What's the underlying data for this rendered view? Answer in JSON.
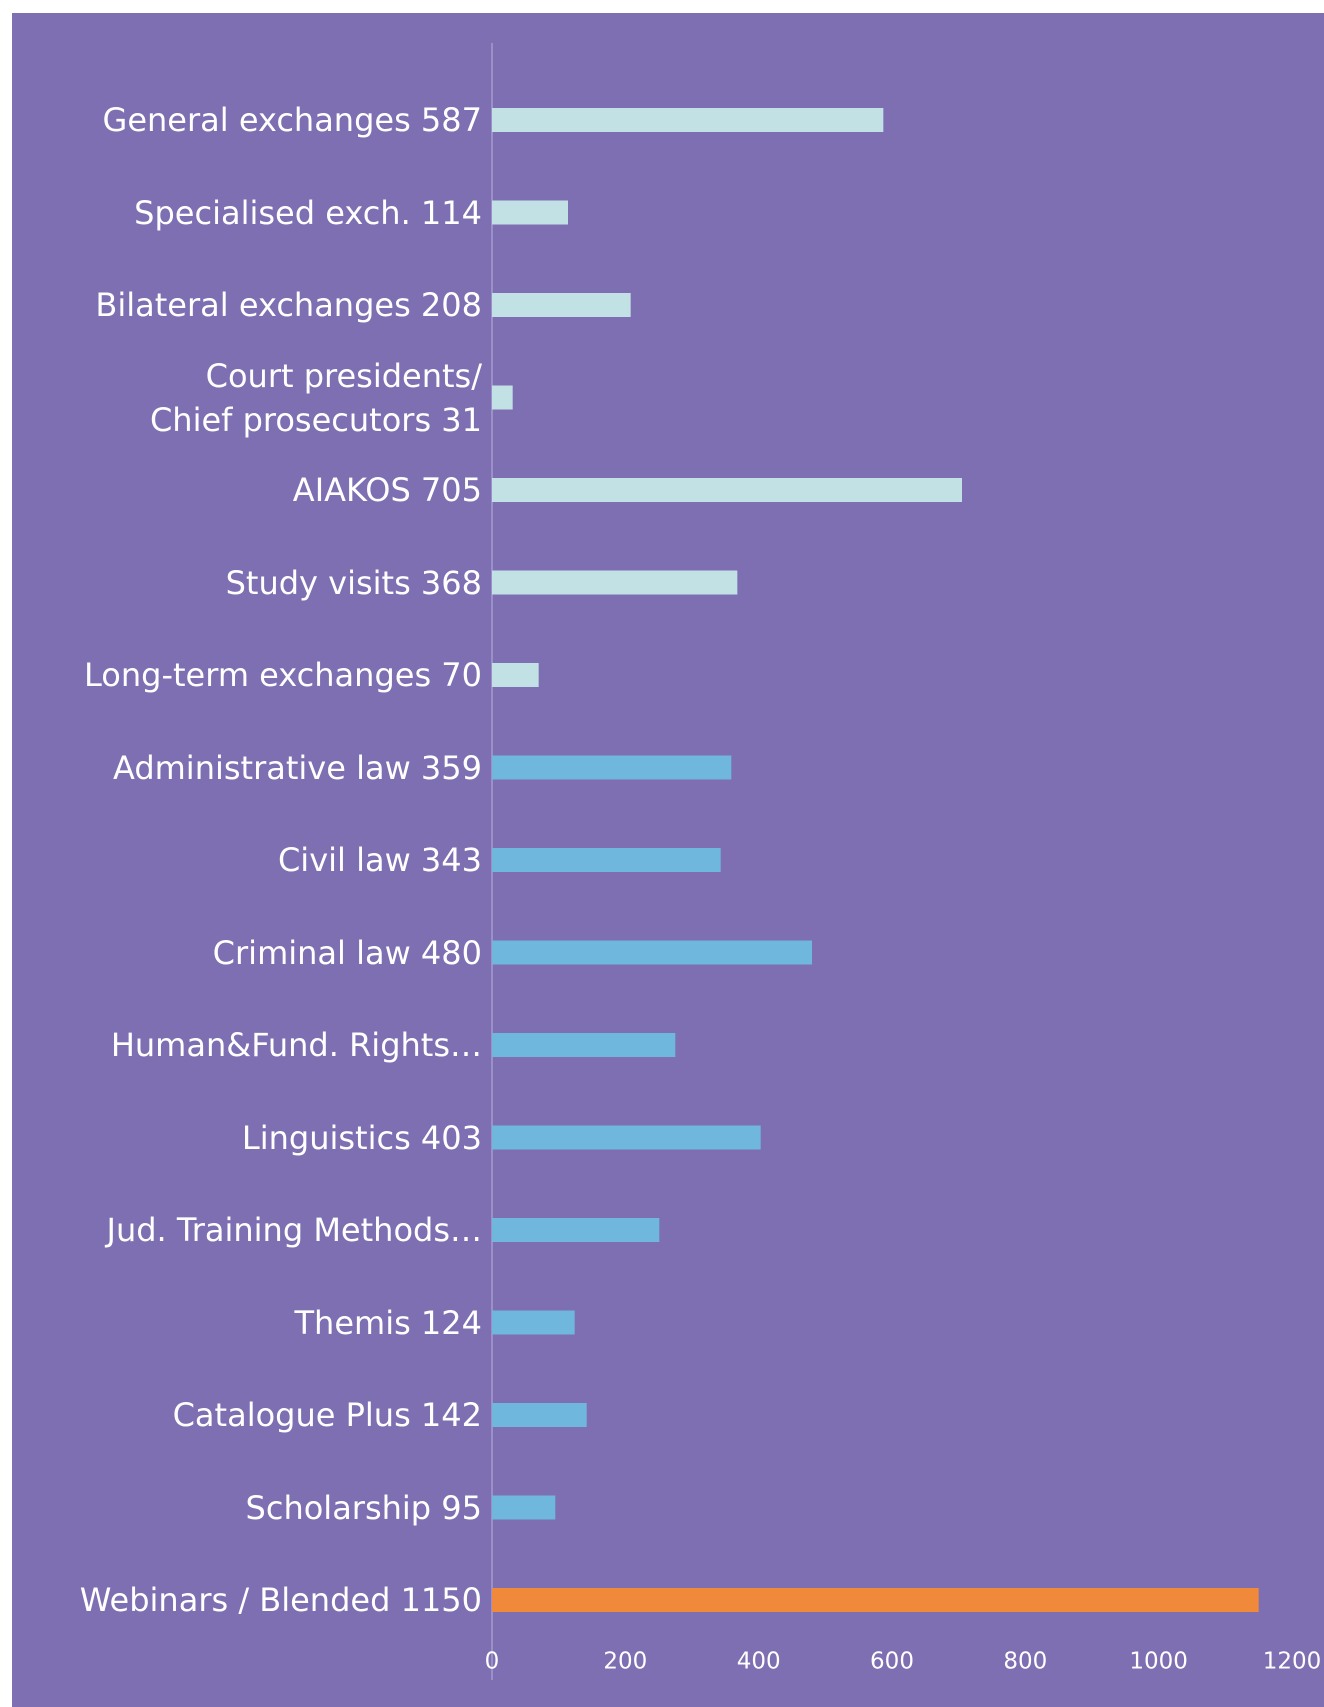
{
  "chart_data": {
    "type": "bar",
    "orientation": "horizontal",
    "categories": [
      "General exchanges 587",
      "Specialised exch. 114",
      "Bilateral exchanges 208",
      "Court presidents/\nChief prosecutors 31",
      "AIAKOS 705",
      "Study visits 368",
      "Long-term exchanges 70",
      "Administrative law 359",
      "Civil law 343",
      "Criminal law 480",
      "Human&Fund. Rights…",
      "Linguistics 403",
      "Jud. Training Methods…",
      "Themis 124",
      "Catalogue Plus 142",
      "Scholarship 95",
      "Webinars / Blended 1150"
    ],
    "values": [
      587,
      114,
      208,
      31,
      705,
      368,
      70,
      359,
      343,
      480,
      275,
      403,
      251,
      124,
      142,
      95,
      1150
    ],
    "colors": [
      "#c2e1e5",
      "#c2e1e5",
      "#c2e1e5",
      "#c2e1e5",
      "#c2e1e5",
      "#c2e1e5",
      "#c2e1e5",
      "#6fb7dd",
      "#6fb7dd",
      "#6fb7dd",
      "#6fb7dd",
      "#6fb7dd",
      "#6fb7dd",
      "#6fb7dd",
      "#6fb7dd",
      "#6fb7dd",
      "#f08a3a"
    ],
    "xlim": [
      0,
      1200
    ],
    "xticks": [
      0,
      200,
      400,
      600,
      800,
      1000,
      1200
    ],
    "grid": false
  }
}
